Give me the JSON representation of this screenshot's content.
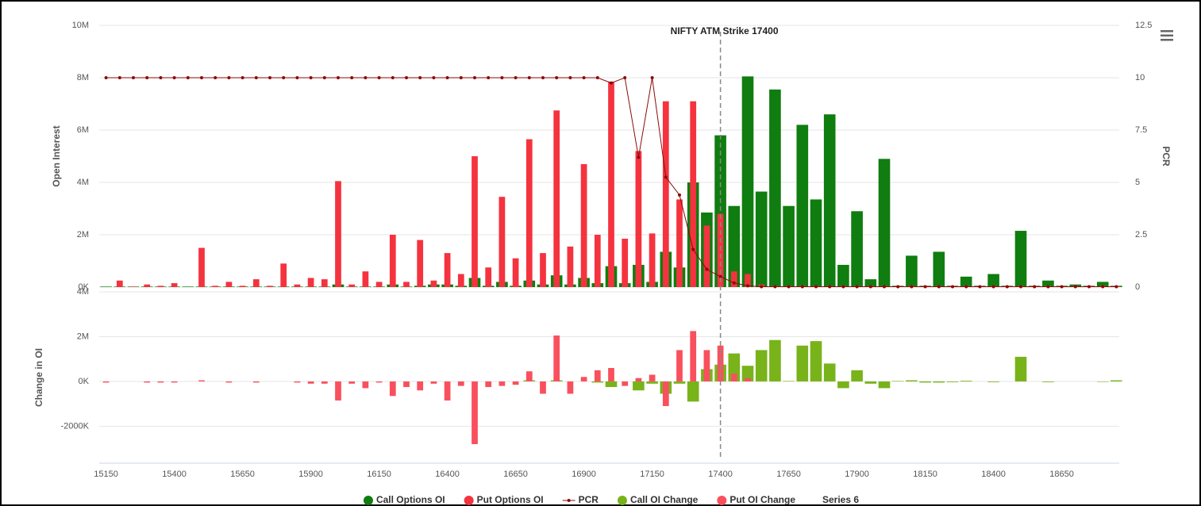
{
  "chart_data": [
    {
      "type": "bar",
      "title": "NIFTY ATM Strike 17400",
      "atm": 17400,
      "y_label": "Open Interest",
      "y2_label": "PCR",
      "ylim": [
        0,
        10000000
      ],
      "yticks": [
        {
          "value": 0,
          "label": "0K"
        },
        {
          "value": 2000000,
          "label": "2M"
        },
        {
          "value": 4000000,
          "label": "4M"
        },
        {
          "value": 6000000,
          "label": "6M"
        },
        {
          "value": 8000000,
          "label": "8M"
        },
        {
          "value": 10000000,
          "label": "10M"
        }
      ],
      "y2lim": [
        0,
        12.5
      ],
      "y2ticks": [
        0,
        2.5,
        5,
        7.5,
        10,
        12.5
      ],
      "grid": true,
      "series": [
        {
          "name": "Call Options OI",
          "type": "bar",
          "color": "#0f7d0f",
          "values": [
            20000,
            20000,
            20000,
            20000,
            20000,
            20000,
            20000,
            20000,
            20000,
            20000,
            20000,
            20000,
            20000,
            20000,
            20000,
            20000,
            20000,
            100000,
            20000,
            20000,
            20000,
            100000,
            20000,
            50000,
            100000,
            100000,
            50000,
            350000,
            50000,
            200000,
            50000,
            250000,
            100000,
            450000,
            100000,
            350000,
            150000,
            800000,
            150000,
            850000,
            200000,
            1350000,
            750000,
            4000000,
            2850000,
            5800000,
            3100000,
            8050000,
            3650000,
            7550000,
            3100000,
            6200000,
            3350000,
            6600000,
            850000,
            2900000,
            300000,
            4900000,
            50000,
            1200000,
            50000,
            1350000,
            50000,
            400000,
            50000,
            500000,
            50000,
            2150000,
            50000,
            250000,
            50000,
            100000,
            50000,
            200000,
            50000
          ]
        },
        {
          "name": "Put Options OI",
          "type": "bar",
          "color": "#f4333f",
          "values": [
            0,
            250000,
            20000,
            100000,
            50000,
            150000,
            0,
            1500000,
            50000,
            200000,
            50000,
            300000,
            50000,
            900000,
            100000,
            350000,
            300000,
            4050000,
            100000,
            600000,
            200000,
            2000000,
            200000,
            1800000,
            250000,
            1300000,
            500000,
            5000000,
            750000,
            3450000,
            1100000,
            5650000,
            1300000,
            6750000,
            1550000,
            4700000,
            2000000,
            7850000,
            1850000,
            5200000,
            2050000,
            7100000,
            3350000,
            7100000,
            2350000,
            2800000,
            600000,
            500000,
            100000,
            50000,
            50000,
            50000,
            50000,
            50000,
            50000,
            50000,
            50000,
            50000,
            50000,
            50000,
            50000,
            50000,
            50000,
            50000,
            50000,
            50000,
            50000,
            50000,
            50000,
            50000,
            50000,
            50000,
            50000,
            50000,
            50000
          ]
        },
        {
          "name": "PCR",
          "type": "line",
          "axis": "y2",
          "color": "#8b0a0a",
          "values": [
            10,
            10,
            10,
            10,
            10,
            10,
            10,
            10,
            10,
            10,
            10,
            10,
            10,
            10,
            10,
            10,
            10,
            10,
            10,
            10,
            10,
            10,
            10,
            10,
            10,
            10,
            10,
            10,
            10,
            10,
            10,
            10,
            10,
            10,
            10,
            10,
            10,
            9.75,
            10,
            6.2,
            10,
            5.25,
            4.4,
            1.8,
            0.85,
            0.5,
            0.2,
            0.06,
            0.02,
            0.02,
            0.02,
            0.02,
            0.02,
            0.02,
            0.02,
            0.02,
            0.02,
            0.02,
            0.02,
            0.02,
            0.02,
            0.02,
            0.02,
            0.02,
            0.02,
            0.02,
            0.02,
            0.02,
            0.02,
            0.02,
            0.02,
            0.02,
            0.02,
            0.02,
            0.02
          ]
        }
      ]
    },
    {
      "type": "bar",
      "y_label": "Change in OI",
      "categories": [
        15150,
        null,
        null,
        null,
        null,
        15400,
        null,
        null,
        null,
        null,
        15650,
        null,
        null,
        null,
        null,
        15900,
        null,
        null,
        null,
        null,
        16150,
        null,
        null,
        null,
        null,
        16400,
        null,
        null,
        null,
        null,
        16650,
        null,
        null,
        null,
        null,
        16900,
        null,
        null,
        null,
        null,
        17150,
        null,
        null,
        null,
        null,
        17400,
        null,
        null,
        null,
        null,
        17650,
        null,
        null,
        null,
        null,
        17900,
        null,
        null,
        null,
        null,
        18150,
        null,
        null,
        null,
        null,
        18400,
        null,
        null,
        null,
        null,
        18650,
        null,
        null,
        null,
        null
      ],
      "ylim": [
        -3650000,
        4000000
      ],
      "yticks": [
        {
          "value": -2000000,
          "label": "-2000K"
        },
        {
          "value": 0,
          "label": "0K"
        },
        {
          "value": 2000000,
          "label": "2M"
        },
        {
          "value": 4000000,
          "label": "4M"
        }
      ],
      "grid": true,
      "series": [
        {
          "name": "Call OI Change",
          "type": "bar",
          "color": "#78b31a",
          "values": [
            0,
            0,
            0,
            0,
            0,
            0,
            0,
            0,
            0,
            0,
            0,
            0,
            0,
            0,
            0,
            0,
            0,
            0,
            0,
            0,
            0,
            0,
            0,
            0,
            0,
            0,
            0,
            0,
            0,
            0,
            0,
            50000,
            0,
            50000,
            0,
            0,
            -50000,
            -250000,
            0,
            -400000,
            -100000,
            -550000,
            -100000,
            -900000,
            550000,
            750000,
            1250000,
            700000,
            1400000,
            1850000,
            20000,
            1600000,
            1800000,
            800000,
            -300000,
            500000,
            -100000,
            -300000,
            20000,
            50000,
            -50000,
            -50000,
            -30000,
            30000,
            0,
            -30000,
            0,
            1100000,
            0,
            -30000,
            0,
            0,
            0,
            -20000,
            50000
          ]
        },
        {
          "name": "Put OI Change",
          "type": "bar",
          "color": "#f9505e",
          "values": [
            -50000,
            0,
            0,
            -50000,
            -50000,
            -50000,
            0,
            50000,
            0,
            -50000,
            0,
            -50000,
            0,
            0,
            -50000,
            -100000,
            -100000,
            -850000,
            -100000,
            -300000,
            -50000,
            -650000,
            -250000,
            -400000,
            -100000,
            -850000,
            -200000,
            -2800000,
            -250000,
            -200000,
            -150000,
            450000,
            -550000,
            2050000,
            -550000,
            200000,
            500000,
            600000,
            -200000,
            150000,
            300000,
            -1100000,
            1400000,
            2250000,
            1400000,
            1600000,
            350000,
            150000,
            0,
            0,
            0,
            0,
            0,
            0,
            0,
            0,
            0,
            0,
            0,
            0,
            0,
            0,
            0,
            0,
            0,
            0,
            0,
            0,
            0,
            0,
            0,
            0,
            0,
            0,
            0
          ]
        },
        {
          "name": "Series 6"
        }
      ]
    }
  ]
}
